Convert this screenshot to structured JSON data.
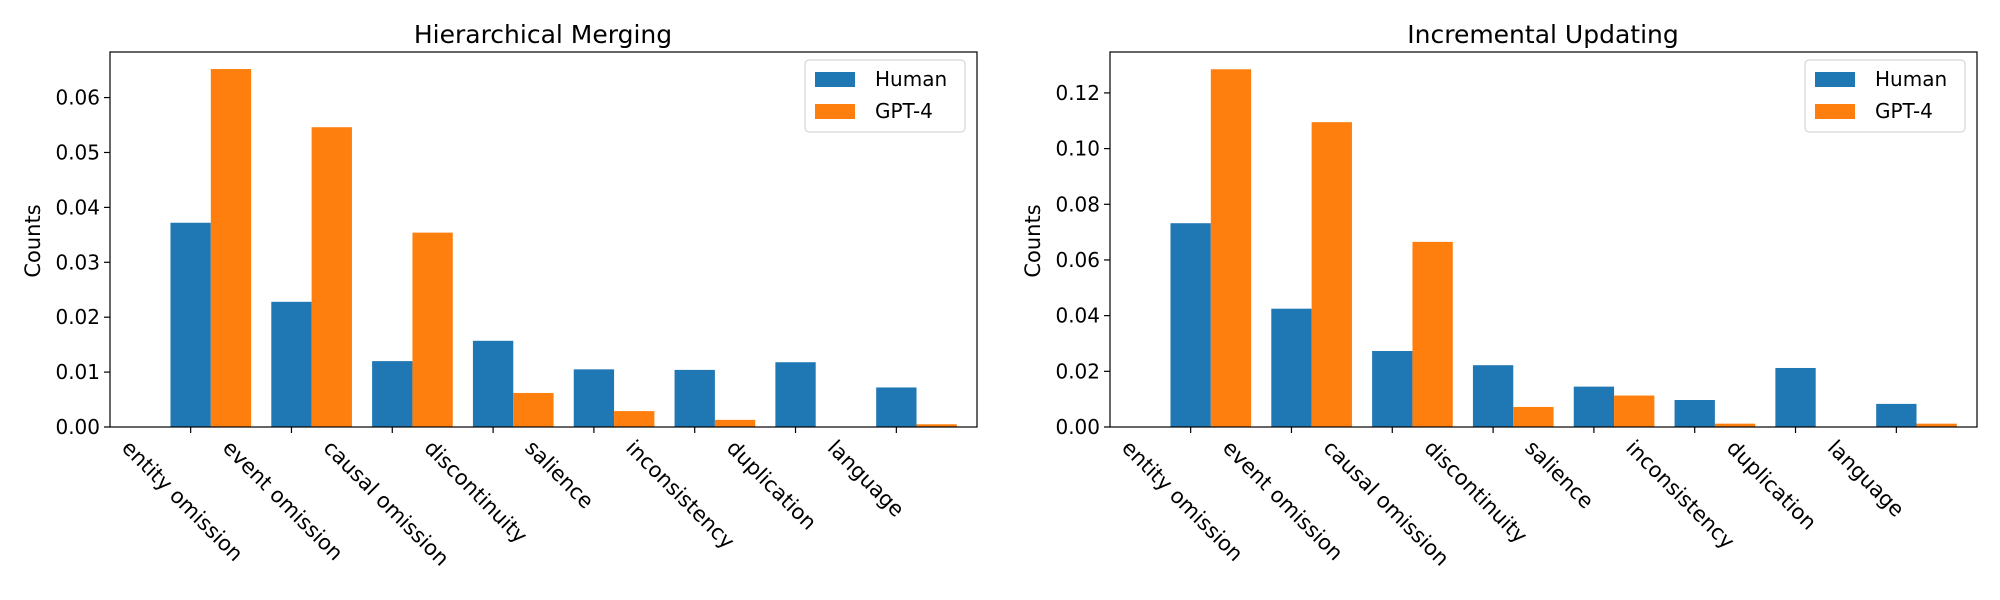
{
  "colors": {
    "human": "#1f77b4",
    "gpt4": "#ff7f0e"
  },
  "chart_data": [
    {
      "type": "bar",
      "title": "Hierarchical Merging",
      "xlabel": "",
      "ylabel": "Counts",
      "categories": [
        "entity omission",
        "event omission",
        "causal omission",
        "discontinuity",
        "salience",
        "inconsistency",
        "duplication",
        "language"
      ],
      "series": [
        {
          "name": "Human",
          "values": [
            0.0372,
            0.0228,
            0.012,
            0.0157,
            0.0105,
            0.0104,
            0.0118,
            0.0072
          ]
        },
        {
          "name": "GPT-4",
          "values": [
            0.0652,
            0.0546,
            0.0354,
            0.0062,
            0.0029,
            0.0013,
            0.0,
            0.0005
          ]
        }
      ],
      "ylim": [
        0,
        0.0683
      ],
      "yticks": [
        0.0,
        0.01,
        0.02,
        0.03,
        0.04,
        0.05,
        0.06
      ],
      "ytick_labels": [
        "0.00",
        "0.01",
        "0.02",
        "0.03",
        "0.04",
        "0.05",
        "0.06"
      ],
      "legend": "top-right",
      "grid": false
    },
    {
      "type": "bar",
      "title": "Incremental Updating",
      "xlabel": "",
      "ylabel": "Counts",
      "categories": [
        "entity omission",
        "event omission",
        "causal omission",
        "discontinuity",
        "salience",
        "inconsistency",
        "duplication",
        "language"
      ],
      "series": [
        {
          "name": "Human",
          "values": [
            0.0732,
            0.0425,
            0.0273,
            0.0222,
            0.0145,
            0.0097,
            0.0212,
            0.0083
          ]
        },
        {
          "name": "GPT-4",
          "values": [
            0.1285,
            0.1095,
            0.0665,
            0.0072,
            0.0113,
            0.0012,
            0.0,
            0.0012
          ]
        }
      ],
      "ylim": [
        0,
        0.1347
      ],
      "yticks": [
        0.0,
        0.02,
        0.04,
        0.06,
        0.08,
        0.1,
        0.12
      ],
      "ytick_labels": [
        "0.00",
        "0.02",
        "0.04",
        "0.06",
        "0.08",
        "0.10",
        "0.12"
      ],
      "legend": "top-right",
      "grid": false
    }
  ]
}
